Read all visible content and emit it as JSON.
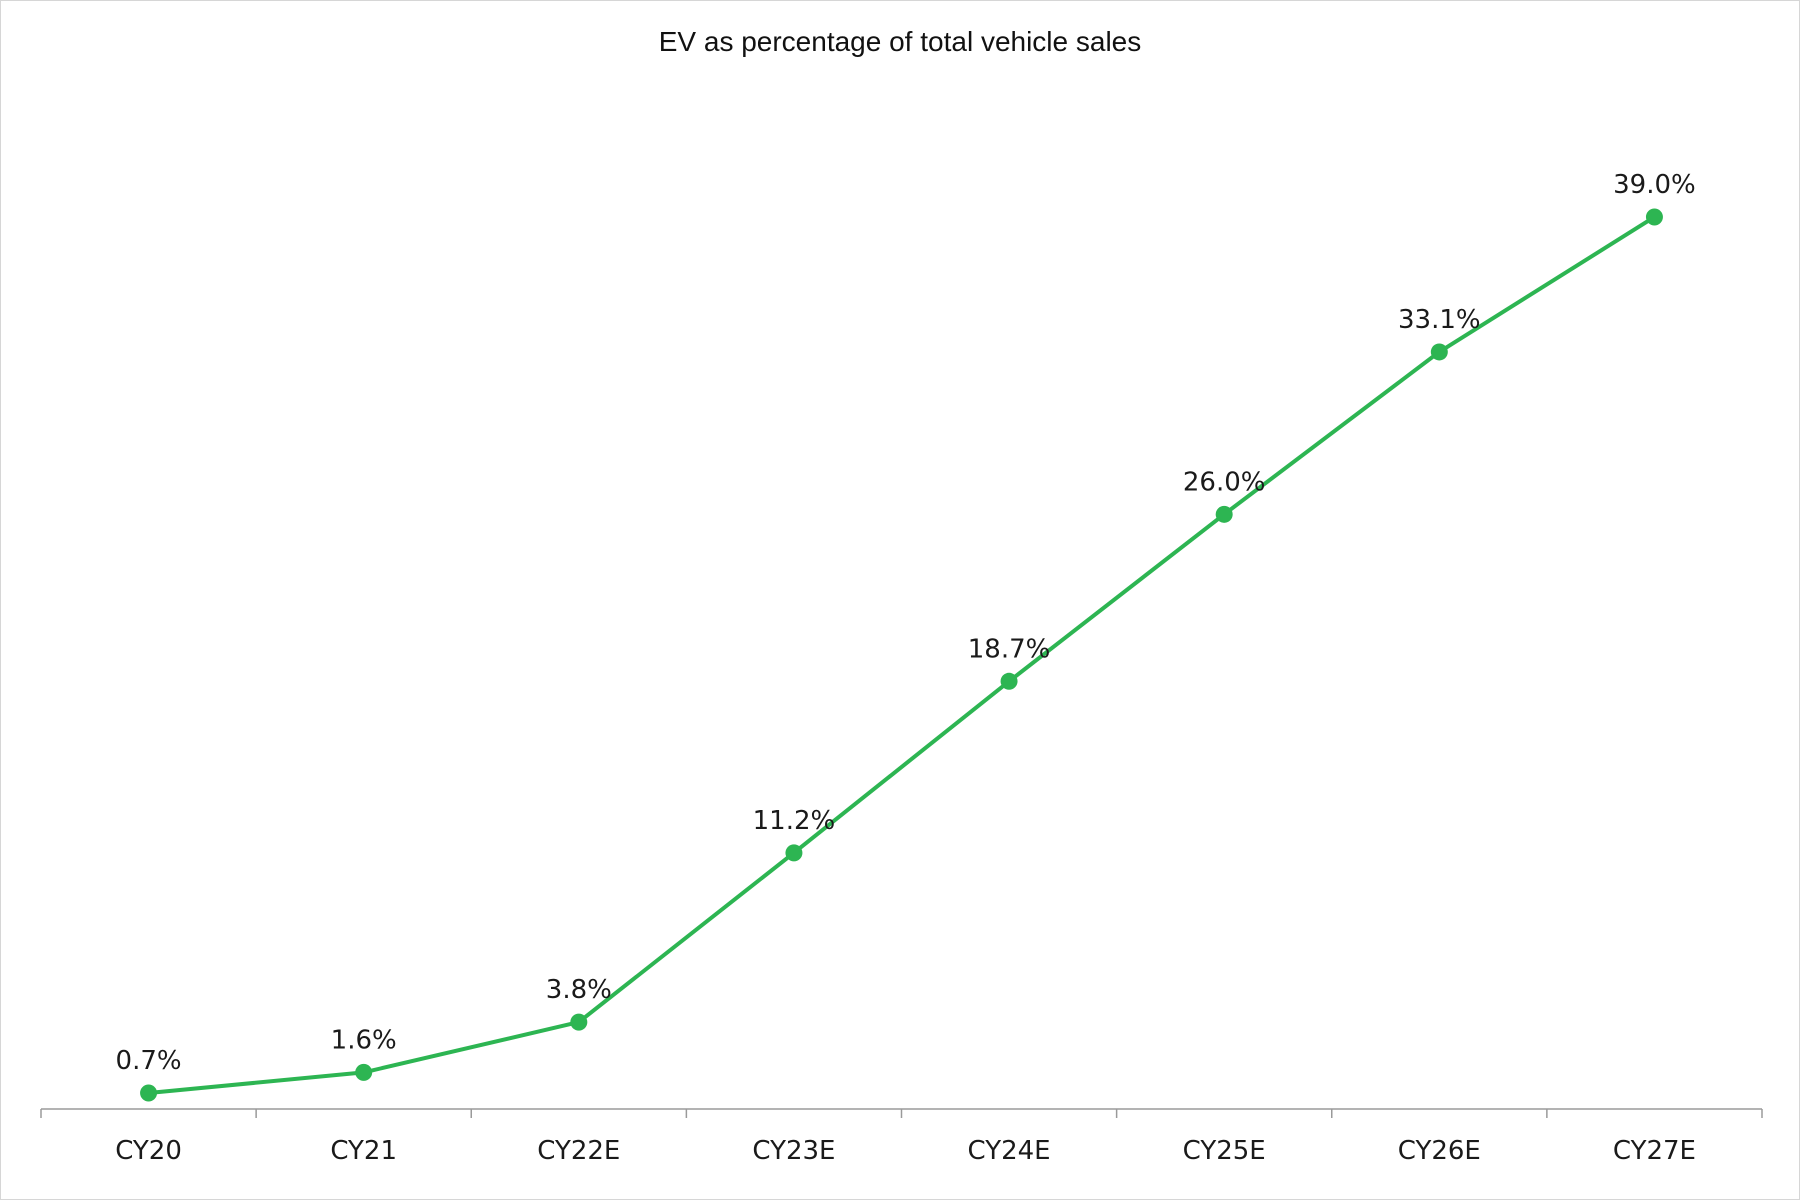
{
  "chart_data": {
    "type": "line",
    "title": "EV as percentage of total vehicle sales",
    "xlabel": "",
    "ylabel": "",
    "categories": [
      "CY20",
      "CY21",
      "CY22E",
      "CY23E",
      "CY24E",
      "CY25E",
      "CY26E",
      "CY27E"
    ],
    "series": [
      {
        "values": [
          0.7,
          1.6,
          3.8,
          11.2,
          18.7,
          26.0,
          33.1,
          39.0
        ],
        "labels": [
          "0.7%",
          "1.6%",
          "3.8%",
          "11.2%",
          "18.7%",
          "26.0%",
          "33.1%",
          "39.0%"
        ],
        "color": "#2db552"
      }
    ],
    "ylim": [
      0,
      39
    ],
    "grid": false,
    "legend": "none",
    "axis_color": "#9a9a9a"
  }
}
